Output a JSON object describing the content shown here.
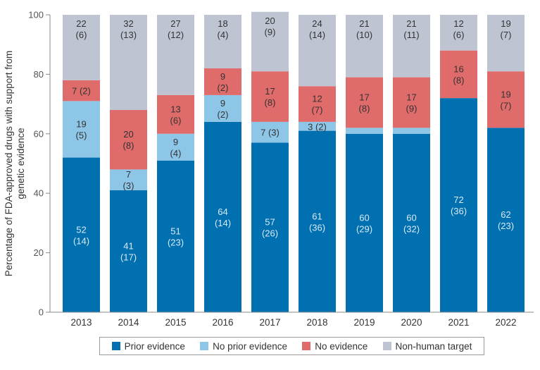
{
  "chart_data": {
    "type": "bar",
    "stacked": true,
    "title": "",
    "xlabel": "",
    "ylabel": "Percentage of FDA-approved drugs with support from genetic evidence",
    "ylabel_lines": [
      "Percentage of FDA-approved drugs with support from",
      "genetic evidence"
    ],
    "ylim": [
      0,
      100
    ],
    "yticks": [
      0,
      20,
      40,
      60,
      80,
      100
    ],
    "grid": false,
    "legend_position": "bottom",
    "categories": [
      "2013",
      "2014",
      "2015",
      "2016",
      "2017",
      "2018",
      "2019",
      "2020",
      "2021",
      "2022"
    ],
    "series": [
      {
        "name": "Prior evidence",
        "color": "#0070b0",
        "label_color": "#dbe9f5",
        "values": [
          52,
          41,
          51,
          64,
          57,
          61,
          60,
          60,
          72,
          62
        ],
        "counts": [
          14,
          17,
          23,
          14,
          26,
          36,
          29,
          32,
          36,
          23
        ],
        "labels": [
          "52\n(14)",
          "41\n(17)",
          "51\n(23)",
          "64\n(14)",
          "57\n(26)",
          "61\n(36)",
          "60\n(29)",
          "60\n(32)",
          "72\n(36)",
          "62\n(23)"
        ]
      },
      {
        "name": "No prior evidence",
        "color": "#8ec6e8",
        "label_color": "#333333",
        "values": [
          19,
          7,
          9,
          9,
          7,
          3,
          2,
          2,
          0,
          0
        ],
        "counts": [
          5,
          3,
          4,
          2,
          3,
          2,
          null,
          null,
          0,
          0
        ],
        "labels": [
          "19\n(5)",
          "7\n(3)",
          "9\n(4)",
          "9\n(2)",
          "7 (3)",
          "3 (2)",
          "",
          "",
          "",
          ""
        ]
      },
      {
        "name": "No evidence",
        "color": "#e06b6b",
        "label_color": "#333333",
        "values": [
          7,
          20,
          13,
          9,
          17,
          12,
          17,
          17,
          16,
          19
        ],
        "counts": [
          2,
          8,
          6,
          2,
          8,
          7,
          8,
          9,
          8,
          7
        ],
        "labels": [
          "7 (2)",
          "20\n(8)",
          "13\n(6)",
          "9\n(2)",
          "17\n(8)",
          "12\n(7)",
          "17\n(8)",
          "17\n(9)",
          "16\n(8)",
          "19\n(7)"
        ]
      },
      {
        "name": "Non-human target",
        "color": "#bfc4d3",
        "label_color": "#333333",
        "values": [
          22,
          32,
          27,
          18,
          20,
          24,
          21,
          21,
          12,
          19
        ],
        "counts": [
          6,
          13,
          12,
          4,
          9,
          14,
          10,
          11,
          6,
          7
        ],
        "labels": [
          "22\n(6)",
          "32\n(13)",
          "27\n(12)",
          "18\n(4)",
          "20\n(9)",
          "24\n(14)",
          "21\n(10)",
          "21\n(11)",
          "12\n(6)",
          "19\n(7)"
        ]
      }
    ],
    "label_placement": {
      "Prior evidence": "middle",
      "No prior evidence": "middle",
      "No evidence": "middle",
      "Non-human target": "top"
    },
    "colors": {
      "axis": "#888888",
      "tick_text": "#555555"
    }
  }
}
